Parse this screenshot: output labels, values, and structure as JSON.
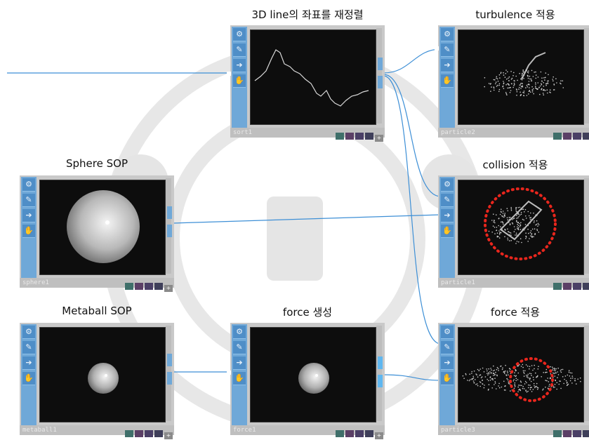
{
  "nodes": [
    {
      "key": "sort",
      "title": "3D line의 좌표를 재정렬",
      "name": "sort1"
    },
    {
      "key": "turb",
      "title": "turbulence 적용",
      "name": "particle2"
    },
    {
      "key": "sphere",
      "title": "Sphere SOP",
      "name": "sphere1"
    },
    {
      "key": "collision",
      "title": "collision 적용",
      "name": "particle1"
    },
    {
      "key": "metaball",
      "title": "Metaball SOP",
      "name": "metaball1"
    },
    {
      "key": "forcegen",
      "title": "force 생성",
      "name": "force1"
    },
    {
      "key": "forceapply",
      "title": "force 적용",
      "name": "particle3"
    }
  ],
  "icons": [
    "gear-icon",
    "pencil-icon",
    "arrow-right-icon",
    "hand-icon"
  ],
  "colors": {
    "wire": "#3d8fd6",
    "iconbar": "#6fa8d8",
    "viewer": "#0d0d0d",
    "highlight": "#e8261d"
  }
}
